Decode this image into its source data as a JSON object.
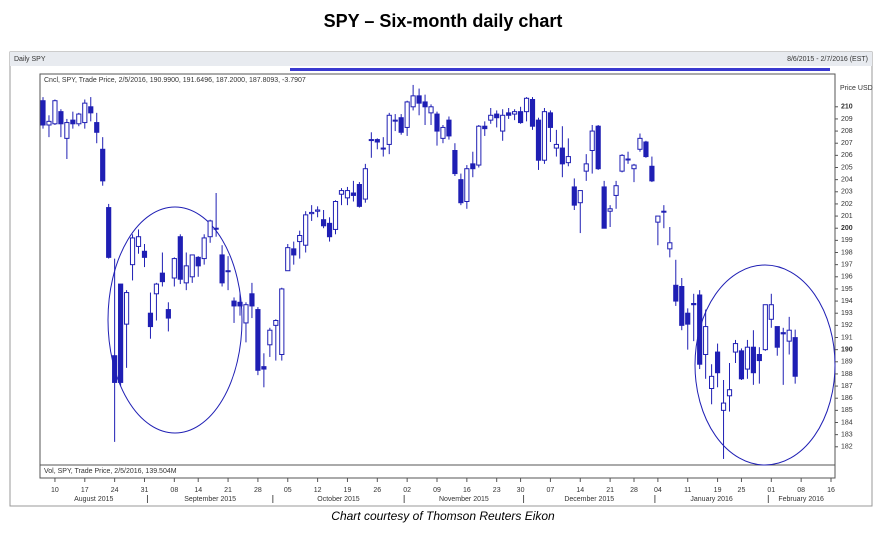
{
  "chart_data": {
    "type": "candlestick",
    "title": "SPY – Six-month daily chart",
    "panel_title": "Daily SPY",
    "date_range": "8/6/2015 - 2/7/2016 (EST)",
    "info_label": "Cncl, SPY, Trade Price, 2/5/2016, 190.9900, 191.6496, 187.2000, 187.8093, -3.7907",
    "volume_label": "Vol, SPY, Trade Price, 2/5/2016, 139.504M",
    "y_axis_label": "Price USD",
    "caption": "Chart courtesy of Thomson Reuters Eikon",
    "color": "#1f1fb4",
    "x": [
      "2015-08-06",
      "2015-08-07",
      "2015-08-10",
      "2015-08-11",
      "2015-08-12",
      "2015-08-13",
      "2015-08-14",
      "2015-08-17",
      "2015-08-18",
      "2015-08-19",
      "2015-08-20",
      "2015-08-21",
      "2015-08-24",
      "2015-08-25",
      "2015-08-26",
      "2015-08-27",
      "2015-08-28",
      "2015-08-31",
      "2015-09-01",
      "2015-09-02",
      "2015-09-03",
      "2015-09-04",
      "2015-09-08",
      "2015-09-09",
      "2015-09-10",
      "2015-09-11",
      "2015-09-14",
      "2015-09-15",
      "2015-09-16",
      "2015-09-17",
      "2015-09-18",
      "2015-09-21",
      "2015-09-22",
      "2015-09-23",
      "2015-09-24",
      "2015-09-25",
      "2015-09-28",
      "2015-09-29",
      "2015-09-30",
      "2015-10-01",
      "2015-10-02",
      "2015-10-05",
      "2015-10-06",
      "2015-10-07",
      "2015-10-08",
      "2015-10-09",
      "2015-10-12",
      "2015-10-13",
      "2015-10-14",
      "2015-10-15",
      "2015-10-16",
      "2015-10-19",
      "2015-10-20",
      "2015-10-21",
      "2015-10-22",
      "2015-10-23",
      "2015-10-26",
      "2015-10-27",
      "2015-10-28",
      "2015-10-29",
      "2015-10-30",
      "2015-11-02",
      "2015-11-03",
      "2015-11-04",
      "2015-11-05",
      "2015-11-06",
      "2015-11-09",
      "2015-11-10",
      "2015-11-11",
      "2015-11-12",
      "2015-11-13",
      "2015-11-16",
      "2015-11-17",
      "2015-11-18",
      "2015-11-19",
      "2015-11-20",
      "2015-11-23",
      "2015-11-24",
      "2015-11-25",
      "2015-11-27",
      "2015-11-30",
      "2015-12-01",
      "2015-12-02",
      "2015-12-03",
      "2015-12-04",
      "2015-12-07",
      "2015-12-08",
      "2015-12-09",
      "2015-12-10",
      "2015-12-11",
      "2015-12-14",
      "2015-12-15",
      "2015-12-16",
      "2015-12-17",
      "2015-12-18",
      "2015-12-21",
      "2015-12-22",
      "2015-12-23",
      "2015-12-24",
      "2015-12-28",
      "2015-12-29",
      "2015-12-30",
      "2015-12-31",
      "2016-01-04",
      "2016-01-05",
      "2016-01-06",
      "2016-01-07",
      "2016-01-08",
      "2016-01-11",
      "2016-01-12",
      "2016-01-13",
      "2016-01-14",
      "2016-01-15",
      "2016-01-19",
      "2016-01-20",
      "2016-01-21",
      "2016-01-22",
      "2016-01-25",
      "2016-01-26",
      "2016-01-27",
      "2016-01-28",
      "2016-01-29",
      "2016-02-01",
      "2016-02-02",
      "2016-02-03",
      "2016-02-04",
      "2016-02-05",
      "2016-02-08",
      "2016-02-09",
      "2016-02-10",
      "2016-02-11",
      "2016-02-12",
      "2016-02-16"
    ],
    "open": [
      210.5,
      208.5,
      208.6,
      209.6,
      207.4,
      208.9,
      208.6,
      208.7,
      210,
      208.7,
      206.5,
      201.7,
      189.5,
      195.4,
      192.1,
      197,
      198.5,
      198.1,
      193,
      194.6,
      196.3,
      193.3,
      195.9,
      199.3,
      195.5,
      196,
      197.6,
      197.5,
      199.3,
      200,
      197.8,
      196.5,
      194,
      193.9,
      192.2,
      194.6,
      193.3,
      188.6,
      190.4,
      192,
      189.6,
      196.5,
      198.3,
      198.9,
      198.6,
      201.2,
      201.4,
      200.7,
      200.4,
      199.9,
      202.8,
      202.5,
      202.9,
      203.6,
      202.4,
      207.3,
      207.3,
      206.6,
      206.9,
      208.9,
      209.1,
      208.3,
      210,
      210.9,
      210.4,
      209.5,
      209.4,
      207.4,
      208.9,
      206.4,
      204,
      202.2,
      205.3,
      205.2,
      208.4,
      208.9,
      209.4,
      208,
      209.5,
      209.4,
      209.6,
      209.6,
      210.6,
      208.9,
      205.6,
      209.5,
      206.6,
      206.6,
      205.4,
      203.4,
      202.1,
      204.7,
      206.4,
      208.4,
      203.4,
      201.4,
      202.7,
      204.7,
      205.7,
      204.9,
      206.5,
      207.1,
      205.1,
      200.5,
      201.4,
      198.3,
      195.3,
      195.2,
      193,
      193.8,
      194.5,
      189.6,
      186.8,
      189.8,
      185,
      186.2,
      189.8,
      189.9,
      188.4,
      190.2,
      189.6,
      190,
      192.5,
      191.9,
      191.4,
      190.7,
      190.99,
      null,
      null,
      null,
      null,
      null,
      null
    ],
    "high": [
      210.8,
      209.3,
      210.6,
      209.8,
      209,
      209.6,
      209.5,
      210.6,
      210.8,
      209.5,
      207.5,
      202,
      197.5,
      195.4,
      194.9,
      199.5,
      199.9,
      198.7,
      194.7,
      195.5,
      198,
      193.9,
      197.6,
      199.5,
      198,
      197.8,
      197.7,
      199.5,
      200.7,
      202.9,
      198.6,
      197.7,
      194.3,
      194.7,
      193.9,
      195.5,
      193.5,
      189.7,
      191.8,
      192.5,
      195.1,
      198.7,
      198.9,
      199.8,
      201.4,
      201.9,
      201.8,
      201.5,
      200.9,
      202.3,
      203.3,
      203.4,
      203.9,
      203.8,
      205.3,
      207.9,
      207.4,
      207.5,
      209.5,
      209.4,
      209.4,
      210.5,
      211.8,
      211.5,
      211,
      210.2,
      209.6,
      208.5,
      209.2,
      207,
      204.5,
      205.2,
      206.3,
      208.5,
      208.8,
      209.9,
      209.7,
      209.8,
      209.9,
      209.8,
      210,
      210.8,
      210.8,
      209.1,
      209.9,
      209.7,
      208.1,
      208.4,
      207.4,
      204.1,
      203.1,
      206.1,
      208.5,
      208.5,
      203.9,
      201.9,
      203.9,
      206.1,
      206.3,
      205.3,
      207.8,
      207.2,
      205.9,
      201,
      201.9,
      200.1,
      197.4,
      195.9,
      193.4,
      194.6,
      194.9,
      193.3,
      188.8,
      190.5,
      187.5,
      188.9,
      190.8,
      190.1,
      190.8,
      191.6,
      190.2,
      193.7,
      194.6,
      191.9,
      191.8,
      192.7,
      191.6496,
      null,
      null,
      null,
      null,
      null,
      null
    ],
    "low": [
      208.2,
      207.5,
      208.5,
      207.5,
      205.7,
      208.2,
      208.4,
      208.2,
      208.8,
      207,
      203.5,
      197.5,
      182.4,
      187,
      188.5,
      195.7,
      197.9,
      196.8,
      190.9,
      192.4,
      195.2,
      191.5,
      195.2,
      195.4,
      194.9,
      195.5,
      196,
      197,
      198.8,
      199.3,
      195.2,
      194.9,
      192.2,
      192.8,
      190.6,
      192.6,
      187.9,
      186.9,
      189.4,
      189.1,
      189.1,
      196.5,
      197,
      197.5,
      198,
      200.6,
      200.9,
      200,
      198.9,
      199.5,
      201.9,
      201.9,
      202.2,
      201.7,
      202.1,
      205.8,
      206.5,
      205.9,
      206.1,
      208,
      207.7,
      207.6,
      209.7,
      209.3,
      208.5,
      208.5,
      206.8,
      207,
      207.3,
      204.3,
      201.9,
      201.6,
      204.2,
      205,
      207.6,
      208.6,
      208.3,
      207.2,
      209,
      208.9,
      208.6,
      208.8,
      208.1,
      204.8,
      205.3,
      207.1,
      205.9,
      204.2,
      205.1,
      201.5,
      199.6,
      203.9,
      204.5,
      204.8,
      200,
      200.1,
      201.6,
      204.6,
      205.3,
      203.8,
      206.3,
      205.8,
      203.8,
      198.6,
      200,
      197.6,
      193.6,
      191.6,
      190,
      190.7,
      188.4,
      187.6,
      185.5,
      186.9,
      181,
      184.9,
      188.9,
      187.5,
      187.6,
      187.1,
      187.2,
      189.9,
      191.8,
      189.5,
      187.1,
      189.6,
      187.2,
      null,
      null,
      null,
      null,
      null,
      null
    ],
    "close": [
      208.5,
      208.8,
      210.5,
      208.6,
      208.7,
      208.6,
      209.4,
      210.3,
      209.5,
      207.9,
      203.9,
      197.6,
      187.3,
      187.3,
      194.7,
      199.2,
      199.3,
      197.6,
      191.9,
      195.4,
      195.6,
      192.6,
      197.5,
      195.8,
      196.9,
      197.8,
      196.9,
      199.2,
      200.6,
      200,
      195.5,
      196.5,
      193.6,
      193.6,
      193.7,
      193.6,
      188.3,
      188.4,
      191.6,
      192.4,
      195,
      198.4,
      197.8,
      199.4,
      201.1,
      201.3,
      201.5,
      200.2,
      199.3,
      202.2,
      203.1,
      203.1,
      202.7,
      201.8,
      204.9,
      207.3,
      207.1,
      206.6,
      209.3,
      208.9,
      207.9,
      210.4,
      210.9,
      210.3,
      210,
      210,
      208,
      208.3,
      207.6,
      204.5,
      202.1,
      204.9,
      204.9,
      208.4,
      208.2,
      209.3,
      209.1,
      209.3,
      209.3,
      209.6,
      208.7,
      210.7,
      208.4,
      205.6,
      209.6,
      208.3,
      206.9,
      205.3,
      205.9,
      201.9,
      203.1,
      205.3,
      208,
      204.9,
      200,
      201.6,
      203.5,
      206,
      205.7,
      205.2,
      207.4,
      205.9,
      203.9,
      201,
      201.4,
      198.8,
      194,
      192,
      192.1,
      193.7,
      188.8,
      191.9,
      187.8,
      188.1,
      185.6,
      186.7,
      190.5,
      187.6,
      190.2,
      188.1,
      189.1,
      193.7,
      193.7,
      190.2,
      191.3,
      191.6,
      187.8093,
      null,
      null,
      null,
      null,
      null,
      null
    ],
    "ylim": [
      180.5,
      212.7
    ],
    "yticks": [
      182,
      183,
      184,
      185,
      186,
      187,
      188,
      189,
      190,
      191,
      192,
      193,
      194,
      195,
      196,
      197,
      198,
      199,
      200,
      201,
      202,
      203,
      204,
      205,
      206,
      207,
      208,
      209,
      210
    ],
    "xticks": [
      {
        "value": "2015-08-10",
        "label": "10"
      },
      {
        "value": "2015-08-17",
        "label": "17"
      },
      {
        "value": "2015-08-24",
        "label": "24"
      },
      {
        "value": "2015-08-31",
        "label": "31"
      },
      {
        "value": "2015-09-08",
        "label": "08"
      },
      {
        "value": "2015-09-14",
        "label": "14"
      },
      {
        "value": "2015-09-21",
        "label": "21"
      },
      {
        "value": "2015-09-28",
        "label": "28"
      },
      {
        "value": "2015-10-05",
        "label": "05"
      },
      {
        "value": "2015-10-12",
        "label": "12"
      },
      {
        "value": "2015-10-19",
        "label": "19"
      },
      {
        "value": "2015-10-26",
        "label": "26"
      },
      {
        "value": "2015-11-02",
        "label": "02"
      },
      {
        "value": "2015-11-09",
        "label": "09"
      },
      {
        "value": "2015-11-16",
        "label": "16"
      },
      {
        "value": "2015-11-23",
        "label": "23"
      },
      {
        "value": "2015-11-30",
        "label": "30"
      },
      {
        "value": "2015-12-07",
        "label": "07"
      },
      {
        "value": "2015-12-14",
        "label": "14"
      },
      {
        "value": "2015-12-21",
        "label": "21"
      },
      {
        "value": "2015-12-28",
        "label": "28"
      },
      {
        "value": "2016-01-04",
        "label": "04"
      },
      {
        "value": "2016-01-11",
        "label": "11"
      },
      {
        "value": "2016-01-19",
        "label": "19"
      },
      {
        "value": "2016-01-25",
        "label": "25"
      },
      {
        "value": "2016-02-01",
        "label": "01"
      },
      {
        "value": "2016-02-08",
        "label": "08"
      },
      {
        "value": "2016-02-16",
        "label": "16"
      }
    ],
    "months": [
      {
        "value": "2015-08",
        "label": "August 2015"
      },
      {
        "value": "2015-09",
        "label": "September 2015"
      },
      {
        "value": "2015-10",
        "label": "October 2015"
      },
      {
        "value": "2015-11",
        "label": "November 2015"
      },
      {
        "value": "2015-12",
        "label": "December 2015"
      },
      {
        "value": "2016-01",
        "label": "January 2016"
      },
      {
        "value": "2016-02",
        "label": "February 2016"
      }
    ]
  }
}
